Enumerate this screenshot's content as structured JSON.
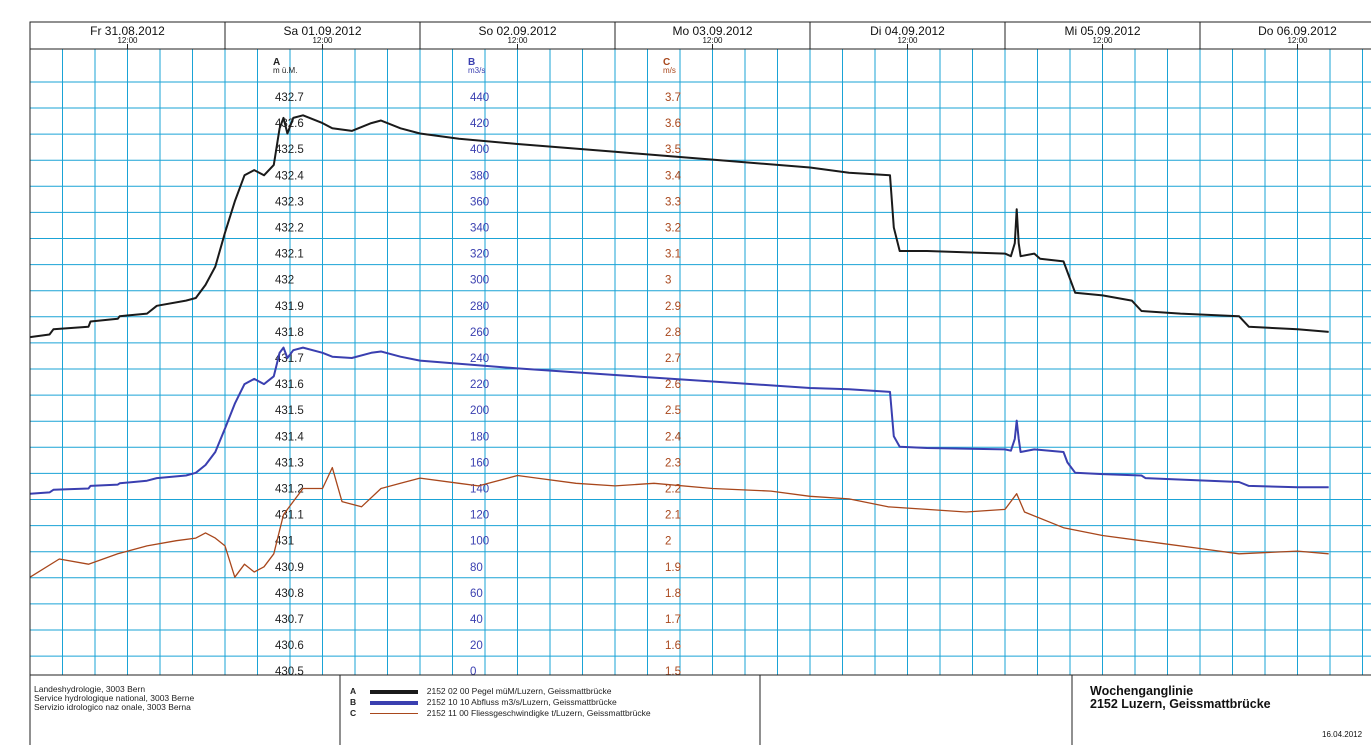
{
  "chart_data": {
    "type": "line",
    "x_axis": {
      "days": [
        {
          "label": "Fr 31.08.2012",
          "time": "12:00"
        },
        {
          "label": "Sa 01.09.2012",
          "time": "12:00"
        },
        {
          "label": "So 02.09.2012",
          "time": "12:00"
        },
        {
          "label": "Mo 03.09.2012",
          "time": "12:00"
        },
        {
          "label": "Di 04.09.2012",
          "time": "12:00"
        },
        {
          "label": "Mi 05.09.2012",
          "time": "12:00"
        },
        {
          "label": "Do 06.09.2012",
          "time": "12:00"
        }
      ],
      "range_days": [
        0,
        7
      ]
    },
    "axes": [
      {
        "letter": "A",
        "unit": "m ü.M.",
        "color": "#222222",
        "range": [
          430.5,
          432.7
        ],
        "ticks": [
          "432.7",
          "432.6",
          "432.5",
          "432.4",
          "432.3",
          "432.2",
          "432.1",
          "432",
          "431.9",
          "431.8",
          "431.7",
          "431.6",
          "431.5",
          "431.4",
          "431.3",
          "431.2",
          "431.1",
          "431",
          "430.9",
          "430.8",
          "430.7",
          "430.6",
          "430.5"
        ]
      },
      {
        "letter": "B",
        "unit": "m3/s",
        "color": "#3a3fb0",
        "range": [
          0,
          440
        ],
        "ticks": [
          "440",
          "420",
          "400",
          "380",
          "360",
          "340",
          "320",
          "300",
          "280",
          "260",
          "240",
          "220",
          "200",
          "180",
          "160",
          "140",
          "120",
          "100",
          "80",
          "60",
          "40",
          "20",
          "0"
        ]
      },
      {
        "letter": "C",
        "unit": "m/s",
        "color": "#a8471c",
        "range": [
          1.5,
          3.7
        ],
        "ticks": [
          "3.7",
          "3.6",
          "3.5",
          "3.4",
          "3.3",
          "3.2",
          "3.1",
          "3",
          "2.9",
          "2.8",
          "2.7",
          "2.6",
          "2.5",
          "2.4",
          "2.3",
          "2.2",
          "2.1",
          "2",
          "1.9",
          "1.8",
          "1.7",
          "1.6",
          "1.5"
        ]
      }
    ],
    "grid": true,
    "series": [
      {
        "letter": "A",
        "axis": "A",
        "color": "#1a1a1a",
        "legend": "2152 02 00  Pegel müM/Luzern, Geissmattbrücke",
        "points": [
          [
            0,
            431.78
          ],
          [
            0.1,
            431.79
          ],
          [
            0.12,
            431.81
          ],
          [
            0.3,
            431.82
          ],
          [
            0.31,
            431.84
          ],
          [
            0.45,
            431.85
          ],
          [
            0.46,
            431.86
          ],
          [
            0.6,
            431.87
          ],
          [
            0.65,
            431.9
          ],
          [
            0.8,
            431.92
          ],
          [
            0.85,
            431.93
          ],
          [
            0.9,
            431.98
          ],
          [
            0.95,
            432.05
          ],
          [
            1.0,
            432.18
          ],
          [
            1.05,
            432.3
          ],
          [
            1.1,
            432.4
          ],
          [
            1.15,
            432.42
          ],
          [
            1.2,
            432.4
          ],
          [
            1.25,
            432.44
          ],
          [
            1.28,
            432.58
          ],
          [
            1.3,
            432.62
          ],
          [
            1.32,
            432.56
          ],
          [
            1.35,
            432.62
          ],
          [
            1.4,
            432.63
          ],
          [
            1.5,
            432.6
          ],
          [
            1.55,
            432.58
          ],
          [
            1.65,
            432.57
          ],
          [
            1.75,
            432.6
          ],
          [
            1.8,
            432.61
          ],
          [
            1.9,
            432.58
          ],
          [
            2.0,
            432.56
          ],
          [
            2.2,
            432.54
          ],
          [
            2.5,
            432.52
          ],
          [
            3.0,
            432.49
          ],
          [
            3.5,
            432.46
          ],
          [
            4.0,
            432.43
          ],
          [
            4.2,
            432.41
          ],
          [
            4.41,
            432.4
          ],
          [
            4.43,
            432.2
          ],
          [
            4.46,
            432.11
          ],
          [
            4.6,
            432.11
          ],
          [
            5.0,
            432.1
          ],
          [
            5.03,
            432.09
          ],
          [
            5.05,
            432.14
          ],
          [
            5.06,
            432.27
          ],
          [
            5.07,
            432.14
          ],
          [
            5.08,
            432.09
          ],
          [
            5.15,
            432.1
          ],
          [
            5.18,
            432.08
          ],
          [
            5.3,
            432.07
          ],
          [
            5.32,
            432.03
          ],
          [
            5.36,
            431.95
          ],
          [
            5.5,
            431.94
          ],
          [
            5.65,
            431.92
          ],
          [
            5.7,
            431.88
          ],
          [
            5.9,
            431.87
          ],
          [
            6.2,
            431.86
          ],
          [
            6.25,
            431.82
          ],
          [
            6.5,
            431.81
          ],
          [
            6.66,
            431.8
          ]
        ]
      },
      {
        "letter": "B",
        "axis": "B",
        "color": "#3a3fb0",
        "legend": "2152 10 10  Abfluss m3/s/Luzern, Geissmattbrücke",
        "points": [
          [
            0,
            136
          ],
          [
            0.1,
            137
          ],
          [
            0.12,
            139
          ],
          [
            0.3,
            140
          ],
          [
            0.31,
            142
          ],
          [
            0.45,
            143
          ],
          [
            0.46,
            144
          ],
          [
            0.6,
            146
          ],
          [
            0.65,
            148
          ],
          [
            0.8,
            150
          ],
          [
            0.85,
            152
          ],
          [
            0.9,
            158
          ],
          [
            0.95,
            168
          ],
          [
            1.0,
            186
          ],
          [
            1.05,
            205
          ],
          [
            1.1,
            220
          ],
          [
            1.15,
            224
          ],
          [
            1.2,
            220
          ],
          [
            1.25,
            226
          ],
          [
            1.28,
            244
          ],
          [
            1.3,
            248
          ],
          [
            1.32,
            240
          ],
          [
            1.35,
            246
          ],
          [
            1.4,
            248
          ],
          [
            1.5,
            244
          ],
          [
            1.55,
            241
          ],
          [
            1.65,
            240
          ],
          [
            1.75,
            244
          ],
          [
            1.8,
            245
          ],
          [
            1.9,
            241
          ],
          [
            2.0,
            238
          ],
          [
            2.5,
            232
          ],
          [
            3.0,
            227
          ],
          [
            3.5,
            222
          ],
          [
            4.0,
            217
          ],
          [
            4.2,
            216
          ],
          [
            4.41,
            214
          ],
          [
            4.43,
            180
          ],
          [
            4.46,
            172
          ],
          [
            4.6,
            171
          ],
          [
            5.0,
            170
          ],
          [
            5.03,
            169
          ],
          [
            5.05,
            178
          ],
          [
            5.06,
            192
          ],
          [
            5.07,
            178
          ],
          [
            5.08,
            168
          ],
          [
            5.15,
            170
          ],
          [
            5.3,
            168
          ],
          [
            5.32,
            160
          ],
          [
            5.36,
            152
          ],
          [
            5.5,
            151
          ],
          [
            5.7,
            150
          ],
          [
            5.72,
            148
          ],
          [
            6.2,
            145
          ],
          [
            6.25,
            142
          ],
          [
            6.5,
            141
          ],
          [
            6.66,
            141
          ]
        ]
      },
      {
        "letter": "C",
        "axis": "C",
        "color": "#a8471c",
        "legend": "2152 11 00  Fliessgeschwindigke t/Luzern, Geissmattbrücke",
        "points": [
          [
            0,
            1.86
          ],
          [
            0.15,
            1.93
          ],
          [
            0.3,
            1.91
          ],
          [
            0.45,
            1.95
          ],
          [
            0.6,
            1.98
          ],
          [
            0.75,
            2.0
          ],
          [
            0.85,
            2.01
          ],
          [
            0.9,
            2.03
          ],
          [
            0.95,
            2.01
          ],
          [
            1.0,
            1.98
          ],
          [
            1.05,
            1.86
          ],
          [
            1.1,
            1.91
          ],
          [
            1.15,
            1.88
          ],
          [
            1.2,
            1.9
          ],
          [
            1.25,
            1.95
          ],
          [
            1.3,
            2.1
          ],
          [
            1.4,
            2.2
          ],
          [
            1.5,
            2.2
          ],
          [
            1.55,
            2.28
          ],
          [
            1.6,
            2.15
          ],
          [
            1.7,
            2.13
          ],
          [
            1.8,
            2.2
          ],
          [
            1.9,
            2.22
          ],
          [
            2.0,
            2.24
          ],
          [
            2.2,
            2.22
          ],
          [
            2.3,
            2.21
          ],
          [
            2.5,
            2.25
          ],
          [
            2.6,
            2.24
          ],
          [
            2.8,
            2.22
          ],
          [
            3.0,
            2.21
          ],
          [
            3.2,
            2.22
          ],
          [
            3.5,
            2.2
          ],
          [
            3.8,
            2.19
          ],
          [
            4.0,
            2.17
          ],
          [
            4.2,
            2.16
          ],
          [
            4.4,
            2.13
          ],
          [
            4.6,
            2.12
          ],
          [
            4.8,
            2.11
          ],
          [
            5.0,
            2.12
          ],
          [
            5.06,
            2.18
          ],
          [
            5.1,
            2.11
          ],
          [
            5.3,
            2.05
          ],
          [
            5.5,
            2.02
          ],
          [
            5.8,
            1.99
          ],
          [
            6.0,
            1.97
          ],
          [
            6.2,
            1.95
          ],
          [
            6.5,
            1.96
          ],
          [
            6.66,
            1.95
          ]
        ]
      }
    ]
  },
  "footer": {
    "agency": [
      "Landeshydrologie, 3003 Bern",
      "Service hydrologique national, 3003 Berne",
      "Servizio idrologico naz onale, 3003 Berna"
    ],
    "title_line1": "Wochenganglinie",
    "title_line2": "2152 Luzern, Geissmattbrücke",
    "print_date": "16.04.2012"
  }
}
